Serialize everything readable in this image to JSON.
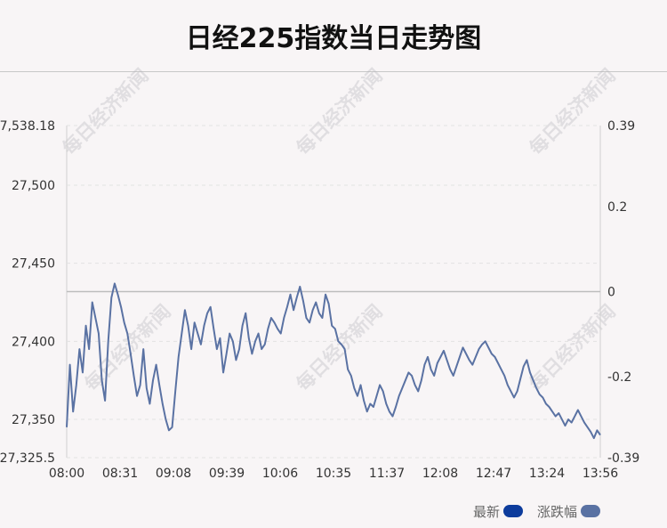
{
  "title": "日经225指数当日走势图",
  "watermark": "每日经济新闻",
  "legend": [
    {
      "label": "最新",
      "color": "#0d3c9c"
    },
    {
      "label": "涨跌幅",
      "color": "#5a72a3"
    }
  ],
  "chart_data": {
    "type": "line",
    "x_tick_labels": [
      "08:00",
      "08:31",
      "09:08",
      "09:39",
      "10:06",
      "10:35",
      "11:37",
      "12:08",
      "12:47",
      "13:24",
      "13:56"
    ],
    "y_left_ticks": [
      "27,538.18",
      "27,500",
      "27,450",
      "27,400",
      "27,350",
      "27,325.5"
    ],
    "y_left_values": [
      27538.18,
      27500,
      27450,
      27400,
      27350,
      27325.5
    ],
    "y_right_ticks": [
      "0.39",
      "0.2",
      "0",
      "-0.2",
      "-0.39"
    ],
    "y_right_values": [
      0.39,
      0.2,
      0,
      -0.2,
      -0.39
    ],
    "ylim": [
      27325.5,
      27538.18
    ],
    "reference_value": 27431,
    "line_color": "#5a72a3",
    "series": [
      {
        "values": [
          27345,
          27385,
          27355,
          27372,
          27395,
          27380,
          27410,
          27395,
          27425,
          27415,
          27405,
          27375,
          27362,
          27400,
          27428,
          27437,
          27430,
          27422,
          27412,
          27405,
          27392,
          27378,
          27365,
          27372,
          27395,
          27370,
          27360,
          27375,
          27385,
          27372,
          27360,
          27350,
          27343,
          27345,
          27368,
          27390,
          27405,
          27420,
          27410,
          27395,
          27412,
          27405,
          27398,
          27410,
          27418,
          27422,
          27408,
          27395,
          27402,
          27380,
          27392,
          27405,
          27400,
          27388,
          27395,
          27410,
          27418,
          27402,
          27392,
          27400,
          27405,
          27395,
          27398,
          27408,
          27415,
          27412,
          27408,
          27405,
          27415,
          27422,
          27430,
          27420,
          27428,
          27435,
          27426,
          27415,
          27412,
          27420,
          27425,
          27418,
          27415,
          27430,
          27424,
          27410,
          27408,
          27400,
          27398,
          27395,
          27382,
          27378,
          27370,
          27365,
          27372,
          27362,
          27355,
          27360,
          27358,
          27365,
          27372,
          27368,
          27360,
          27355,
          27352,
          27358,
          27365,
          27370,
          27375,
          27380,
          27378,
          27372,
          27368,
          27375,
          27385,
          27390,
          27382,
          27378,
          27386,
          27390,
          27394,
          27388,
          27382,
          27378,
          27384,
          27390,
          27396,
          27392,
          27388,
          27385,
          27390,
          27395,
          27398,
          27400,
          27396,
          27392,
          27390,
          27386,
          27382,
          27378,
          27372,
          27368,
          27364,
          27368,
          27376,
          27384,
          27388,
          27380,
          27375,
          27370,
          27366,
          27364,
          27360,
          27358,
          27355,
          27352,
          27354,
          27350,
          27346,
          27350,
          27348,
          27352,
          27356,
          27352,
          27348,
          27345,
          27342,
          27338,
          27343,
          27340
        ]
      }
    ]
  }
}
